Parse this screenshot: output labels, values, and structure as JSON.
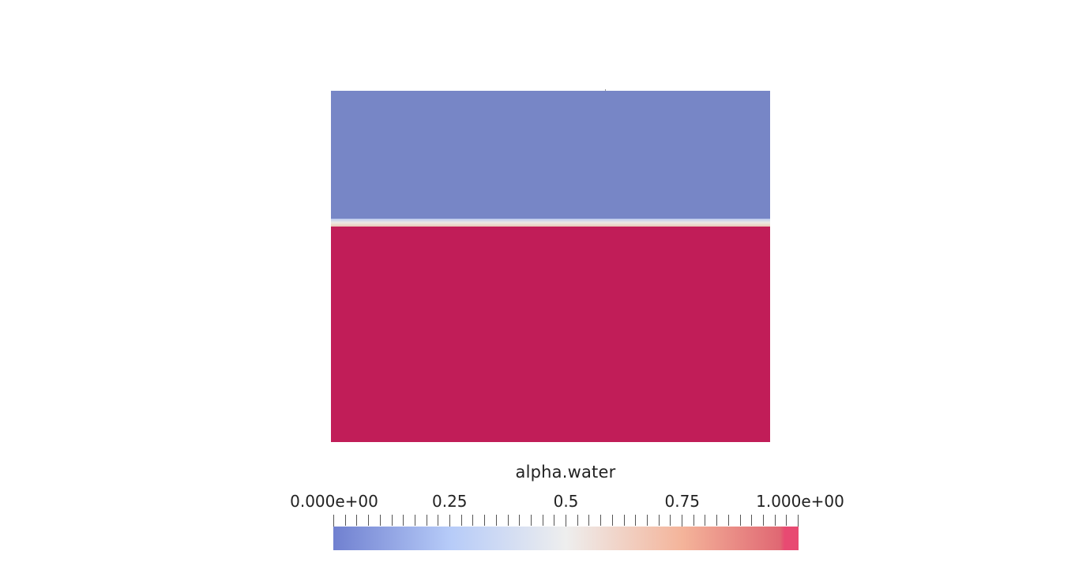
{
  "field": {
    "air_color": "#7786c6",
    "water_color": "#c11d58",
    "interface_colors": [
      "#b9c8ee",
      "#eeeae4",
      "#e8c8b8"
    ]
  },
  "colorbar": {
    "title": "alpha.water",
    "range": [
      0,
      1
    ],
    "tick_labels": [
      {
        "value": 0.0,
        "label": "0.000e+00"
      },
      {
        "value": 0.25,
        "label": "0.25"
      },
      {
        "value": 0.5,
        "label": "0.5"
      },
      {
        "value": 0.75,
        "label": "0.75"
      },
      {
        "value": 1.0,
        "label": "1.000e+00"
      }
    ],
    "minor_tick_count": 41,
    "gradient_stops": [
      {
        "value": 0.0,
        "color": "#7080d0"
      },
      {
        "value": 0.25,
        "color": "#b6cbf8"
      },
      {
        "value": 0.5,
        "color": "#eeeeee"
      },
      {
        "value": 0.75,
        "color": "#f4b49a"
      },
      {
        "value": 0.96,
        "color": "#e06873"
      },
      {
        "value": 0.97,
        "color": "#e84a72"
      },
      {
        "value": 1.0,
        "color": "#e84a72"
      }
    ]
  }
}
